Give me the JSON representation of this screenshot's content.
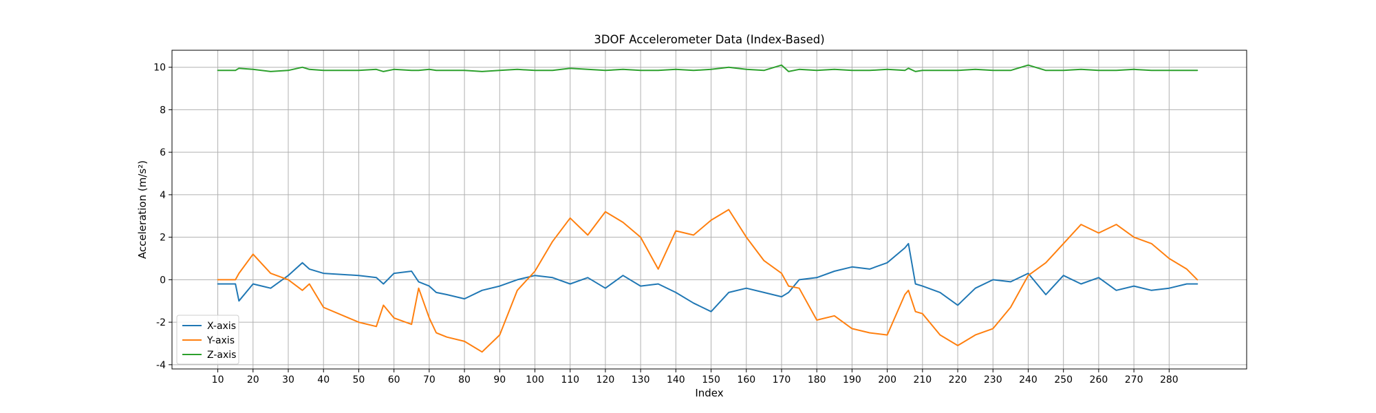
{
  "chart_data": {
    "type": "line",
    "title": "3DOF Accelerometer Data (Index-Based)",
    "xlabel": "Index",
    "ylabel": "Acceleration (m/s²)",
    "xlim": [
      -3,
      302
    ],
    "ylim": [
      -4.2,
      10.8
    ],
    "xticks": [
      10,
      20,
      30,
      40,
      50,
      60,
      70,
      80,
      90,
      100,
      110,
      120,
      130,
      140,
      150,
      160,
      170,
      180,
      190,
      200,
      210,
      220,
      230,
      240,
      250,
      260,
      270,
      280
    ],
    "yticks": [
      -4,
      -2,
      0,
      2,
      4,
      6,
      8,
      10
    ],
    "grid": true,
    "legend_position": "lower-left",
    "x": [
      10,
      15,
      16,
      20,
      25,
      30,
      34,
      36,
      40,
      50,
      55,
      57,
      60,
      65,
      67,
      70,
      72,
      75,
      80,
      85,
      90,
      95,
      100,
      105,
      110,
      115,
      120,
      125,
      130,
      135,
      140,
      145,
      150,
      155,
      160,
      165,
      170,
      172,
      175,
      180,
      185,
      190,
      195,
      200,
      205,
      206,
      208,
      210,
      215,
      220,
      225,
      230,
      235,
      240,
      245,
      250,
      255,
      260,
      265,
      270,
      275,
      280,
      285,
      288
    ],
    "series": [
      {
        "name": "X-axis",
        "color": "#1f77b4",
        "values": [
          -0.2,
          -0.2,
          -1.0,
          -0.2,
          -0.4,
          0.2,
          0.8,
          0.5,
          0.3,
          0.2,
          0.1,
          -0.2,
          0.3,
          0.4,
          -0.1,
          -0.3,
          -0.6,
          -0.7,
          -0.9,
          -0.5,
          -0.3,
          0.0,
          0.2,
          0.1,
          -0.2,
          0.1,
          -0.4,
          0.2,
          -0.3,
          -0.2,
          -0.6,
          -1.1,
          -1.5,
          -0.6,
          -0.4,
          -0.6,
          -0.8,
          -0.6,
          0.0,
          0.1,
          0.4,
          0.6,
          0.5,
          0.8,
          1.5,
          1.7,
          -0.2,
          -0.3,
          -0.6,
          -1.2,
          -0.4,
          0.0,
          -0.1,
          0.3,
          -0.7,
          0.2,
          -0.2,
          0.1,
          -0.5,
          -0.3,
          -0.5,
          -0.4,
          -0.2,
          -0.2
        ]
      },
      {
        "name": "Y-axis",
        "color": "#ff7f0e",
        "values": [
          0.0,
          0.0,
          0.3,
          1.2,
          0.3,
          0.0,
          -0.5,
          -0.2,
          -1.3,
          -2.0,
          -2.2,
          -1.2,
          -1.8,
          -2.1,
          -0.4,
          -1.8,
          -2.5,
          -2.7,
          -2.9,
          -3.4,
          -2.6,
          -0.5,
          0.4,
          1.8,
          2.9,
          2.1,
          3.2,
          2.7,
          2.0,
          0.5,
          2.3,
          2.1,
          2.8,
          3.3,
          2.0,
          0.9,
          0.3,
          -0.3,
          -0.4,
          -1.9,
          -1.7,
          -2.3,
          -2.5,
          -2.6,
          -0.7,
          -0.5,
          -1.5,
          -1.6,
          -2.6,
          -3.1,
          -2.6,
          -2.3,
          -1.3,
          0.2,
          0.8,
          1.7,
          2.6,
          2.2,
          2.6,
          2.0,
          1.7,
          1.0,
          0.5,
          0.0
        ]
      },
      {
        "name": "Z-axis",
        "color": "#2ca02c",
        "values": [
          9.85,
          9.85,
          9.95,
          9.9,
          9.8,
          9.85,
          10.0,
          9.9,
          9.85,
          9.85,
          9.9,
          9.8,
          9.9,
          9.85,
          9.85,
          9.9,
          9.85,
          9.85,
          9.85,
          9.8,
          9.85,
          9.9,
          9.85,
          9.85,
          9.95,
          9.9,
          9.85,
          9.9,
          9.85,
          9.85,
          9.9,
          9.85,
          9.9,
          10.0,
          9.9,
          9.85,
          10.1,
          9.8,
          9.9,
          9.85,
          9.9,
          9.85,
          9.85,
          9.9,
          9.85,
          9.95,
          9.8,
          9.85,
          9.85,
          9.85,
          9.9,
          9.85,
          9.85,
          10.1,
          9.85,
          9.85,
          9.9,
          9.85,
          9.85,
          9.9,
          9.85,
          9.85,
          9.85,
          9.85
        ]
      }
    ]
  }
}
